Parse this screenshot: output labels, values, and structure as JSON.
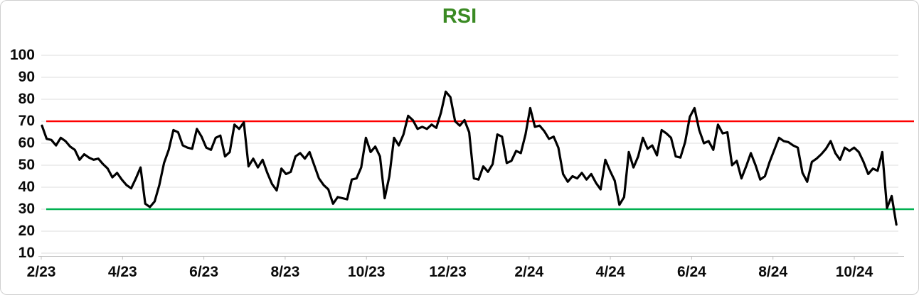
{
  "card": {
    "title": "RSI",
    "title_color": "#3A8A23"
  },
  "chart_data": {
    "type": "line",
    "title": "RSI",
    "series_name": "RSI",
    "x_tick_labels": [
      "2/23",
      "4/23",
      "6/23",
      "8/23",
      "10/23",
      "12/23",
      "2/24",
      "4/24",
      "6/24",
      "8/24",
      "10/24"
    ],
    "y_ticks": [
      100,
      90,
      80,
      70,
      60,
      50,
      40,
      30,
      20,
      10
    ],
    "ylim": [
      10,
      100
    ],
    "grid": "horizontal",
    "legend": "none",
    "overbought_level": 70,
    "oversold_level": 30,
    "overbought_color": "#FE0000",
    "oversold_color": "#00B050",
    "line_color": "#000000",
    "gridline_color": "#dcdcdc",
    "axis_line_color": "#bfbfbf",
    "x_range_note": "semiweekly RSI samples from 2/23 through 11/24",
    "values": [
      68,
      62,
      61.5,
      59,
      62.5,
      61,
      58.5,
      57,
      52.5,
      55,
      53.5,
      52.5,
      53,
      50.5,
      48.5,
      44.5,
      46.5,
      43.5,
      41,
      39.5,
      44,
      49,
      32.5,
      31,
      33.5,
      41,
      51,
      57,
      66,
      65,
      59,
      58,
      57.5,
      66.5,
      63,
      58,
      57,
      62.5,
      63.5,
      54,
      56,
      68.5,
      66.5,
      69.5,
      49.5,
      53,
      49,
      52.5,
      46.5,
      41.5,
      38.5,
      48.5,
      46,
      47,
      54,
      55.5,
      53,
      56,
      50,
      44,
      41,
      39,
      32.5,
      35.5,
      35,
      34.5,
      43.5,
      44,
      49,
      62.5,
      56,
      58.5,
      54,
      35,
      45,
      62.5,
      59,
      64,
      72.5,
      70.5,
      66.5,
      67.5,
      66.5,
      68.5,
      67,
      74,
      83.5,
      81,
      70,
      68,
      70.5,
      65,
      44,
      43.5,
      49.5,
      47,
      50.5,
      64,
      63,
      51,
      52,
      56.5,
      55.5,
      64,
      76,
      67.5,
      68,
      65.5,
      62,
      63,
      58,
      46,
      42.5,
      45,
      44,
      46.5,
      43.5,
      46,
      42,
      39,
      52.5,
      47.5,
      43,
      32,
      35.5,
      56,
      49,
      54,
      62.5,
      57.5,
      59,
      54.5,
      66,
      64.5,
      62.5,
      54,
      53.5,
      60.5,
      72,
      76,
      66,
      60,
      61,
      57,
      68.5,
      64.5,
      65,
      50,
      52,
      44,
      49.5,
      55.5,
      50,
      43.5,
      45,
      51.5,
      57,
      62.5,
      61,
      60.5,
      59,
      58,
      46.5,
      42.5,
      51.5,
      53,
      55,
      57.5,
      61,
      55.5,
      52.5,
      58,
      56.5,
      58,
      56,
      51.5,
      46,
      48.5,
      47.5,
      56,
      30.5,
      36,
      23
    ]
  }
}
